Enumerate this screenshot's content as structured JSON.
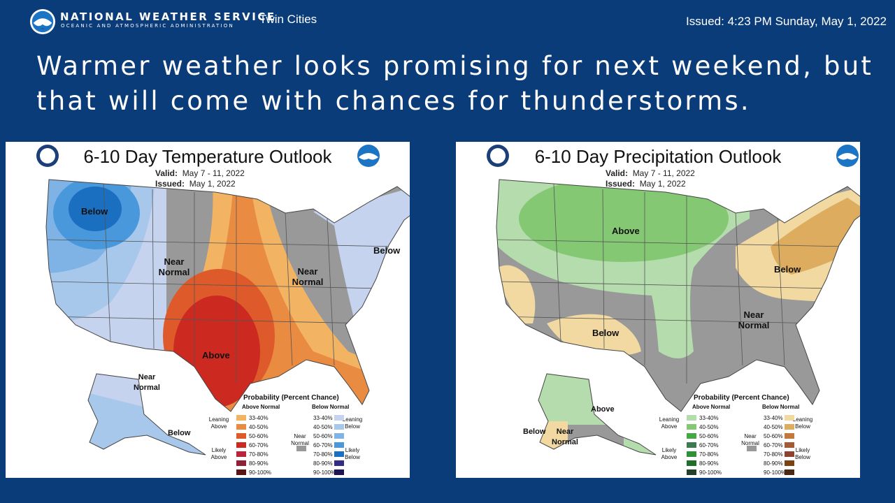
{
  "header": {
    "agency": "NATIONAL WEATHER SERVICE",
    "agency_sub": "OCEANIC AND ATMOSPHERIC ADMINISTRATION",
    "office": "Twin Cities",
    "issued": "Issued: 4:23 PM Sunday, May 1, 2022",
    "logo_text": "NOAA"
  },
  "headline": "Warmer weather looks promising for next weekend, but that will come with chances for thunderstorms.",
  "temperature": {
    "title": "6-10 Day Temperature Outlook",
    "valid_label": "Valid:",
    "valid_value": "May 7 - 11, 2022",
    "issued_label": "Issued:",
    "issued_value": "May 1, 2022",
    "labels": {
      "below_nw": "Below",
      "near_normal_w": "Near Normal",
      "near_normal_e": "Near Normal",
      "below_ne": "Below",
      "above_s": "Above",
      "near_normal_ak": "Near Normal",
      "below_ak": "Below"
    },
    "legend": {
      "title": "Probability (Percent Chance)",
      "above_head": "Above Normal",
      "below_head": "Below Normal",
      "leaning_above": "Leaning Above",
      "likely_above": "Likely Above",
      "leaning_below": "Leaning Below",
      "likely_below": "Likely Below",
      "near_normal": "Near Normal",
      "pcts": [
        "33-40%",
        "40-50%",
        "50-60%",
        "60-70%",
        "70-80%",
        "80-90%",
        "90-100%"
      ],
      "above_colors": [
        "#f2b463",
        "#ea8b42",
        "#de5a2a",
        "#cc2a21",
        "#b7263a",
        "#8e2133",
        "#5a1518"
      ],
      "below_colors": [
        "#c5d3ee",
        "#a8c8eb",
        "#7fb3e6",
        "#4a98dc",
        "#1a6fc0",
        "#332c86",
        "#1f1553"
      ]
    }
  },
  "precipitation": {
    "title": "6-10 Day Precipitation Outlook",
    "valid_label": "Valid:",
    "valid_value": "May 7 - 11, 2022",
    "issued_label": "Issued:",
    "issued_value": "May 1, 2022",
    "labels": {
      "above_n": "Above",
      "below_ne": "Below",
      "below_sw": "Below",
      "near_normal_se": "Near Normal",
      "above_ak": "Above",
      "below_ak": "Below",
      "near_normal_ak": "Near Normal"
    },
    "legend": {
      "title": "Probability (Percent Chance)",
      "above_head": "Above Normal",
      "below_head": "Below Normal",
      "leaning_above": "Leaning Above",
      "likely_above": "Likely Above",
      "leaning_below": "Leaning Below",
      "likely_below": "Likely Below",
      "near_normal": "Near Normal",
      "pcts": [
        "33-40%",
        "40-50%",
        "50-60%",
        "60-70%",
        "70-80%",
        "80-90%",
        "90-100%"
      ],
      "above_colors": [
        "#b4dcac",
        "#84c874",
        "#46a844",
        "#3c7a52",
        "#2f8f3a",
        "#1f6e2a",
        "#24402a"
      ],
      "below_colors": [
        "#f1d9a1",
        "#ddac5f",
        "#c2793d",
        "#a45a35",
        "#8a4430",
        "#7a4410",
        "#4a2a12"
      ]
    }
  }
}
